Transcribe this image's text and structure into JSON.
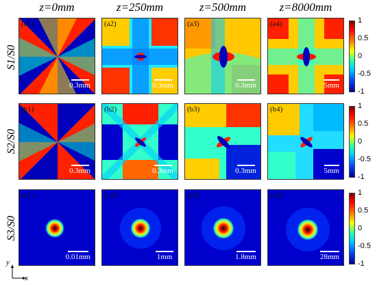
{
  "column_titles": [
    "z=0mm",
    "z=250mm",
    "z=500mm",
    "z=8000mm"
  ],
  "row_labels": [
    "S1/S0",
    "S2/S0",
    "S3/S0"
  ],
  "panels": [
    [
      {
        "tag": "(a1)",
        "scale": "0.3mm"
      },
      {
        "tag": "(a2)",
        "scale": "0.3mm"
      },
      {
        "tag": "(a3)",
        "scale": "0.3mm"
      },
      {
        "tag": "(a4)",
        "scale": "5mm"
      }
    ],
    [
      {
        "tag": "(b1)",
        "scale": "0.3mm"
      },
      {
        "tag": "(b2)",
        "scale": "0.3mm"
      },
      {
        "tag": "(b3)",
        "scale": "0.3mm"
      },
      {
        "tag": "(b4)",
        "scale": "5mm"
      }
    ],
    [
      {
        "tag": "(c1)",
        "scale": "0.01mm"
      },
      {
        "tag": "(c2)",
        "scale": "1mm"
      },
      {
        "tag": "(c3)",
        "scale": "1.8mm"
      },
      {
        "tag": "(c4)",
        "scale": "28mm"
      }
    ]
  ],
  "colorbar_ticks": [
    "1",
    "0.5",
    "0",
    "-0.5",
    "-1"
  ],
  "axes": {
    "x": "x",
    "y": "y"
  },
  "colors": {
    "hot": "#ff0000",
    "cold": "#0000cc",
    "mid": "#33ffcc"
  }
}
